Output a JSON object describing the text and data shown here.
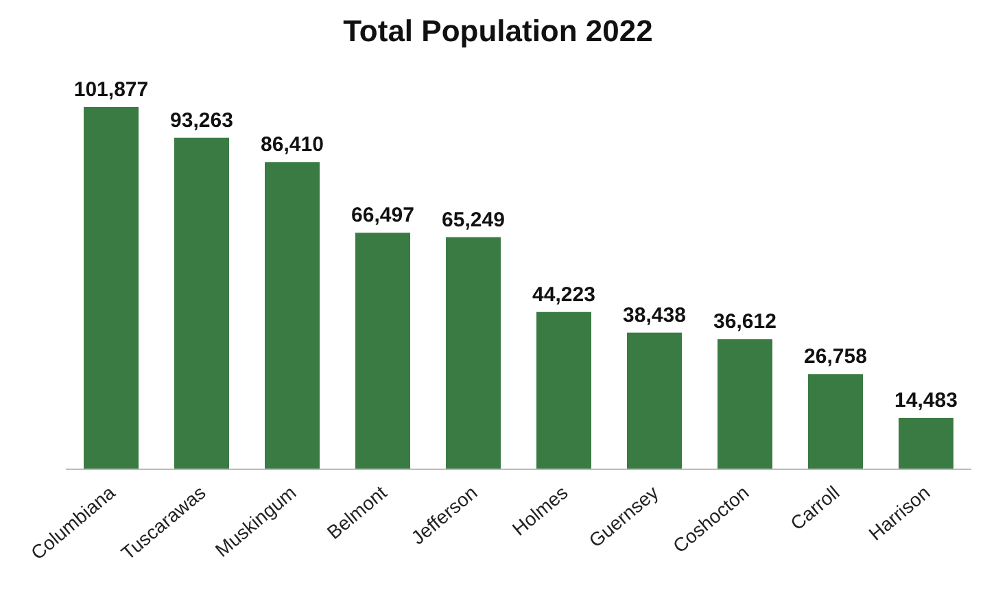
{
  "chart_data": {
    "type": "bar",
    "title": "Total Population 2022",
    "categories": [
      "Columbiana",
      "Tuscarawas",
      "Muskingum",
      "Belmont",
      "Jefferson",
      "Holmes",
      "Guernsey",
      "Coshocton",
      "Carroll",
      "Harrison"
    ],
    "values": [
      101877,
      93263,
      86410,
      66497,
      65249,
      44223,
      38438,
      36612,
      26758,
      14483
    ],
    "value_labels": [
      "101,877",
      "93,263",
      "86,410",
      "66,497",
      "65,249",
      "44,223",
      "38,438",
      "36,612",
      "26,758",
      "14,483"
    ],
    "color": "#3a7b43",
    "grid": false,
    "legend": false
  }
}
